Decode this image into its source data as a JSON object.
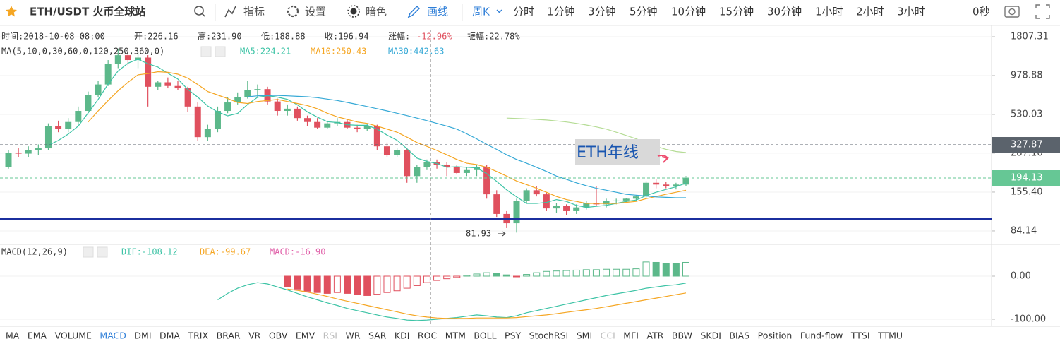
{
  "toolbar": {
    "symbol": "ETH/USDT 火币全球站",
    "buttons": [
      "指标",
      "设置",
      "暗色",
      "画线"
    ],
    "period": "周K",
    "intervals": [
      "分时",
      "1分钟",
      "3分钟",
      "5分钟",
      "10分钟",
      "15分钟",
      "30分钟",
      "1小时",
      "2小时",
      "3小时"
    ],
    "countdown": "0秒"
  },
  "info": {
    "time": "时间:2018-10-08 08:00",
    "open": "开:226.16",
    "high": "高:231.90",
    "low": "低:188.88",
    "close": "收:196.94",
    "change_label": "涨幅:",
    "change": "-12.96%",
    "amplitude": "振幅:22.78%"
  },
  "chart_data": [
    {
      "type": "candlestick",
      "legend_title": "MA(5,10,0,30,60,0,120,250,360,0)",
      "log": true,
      "up_color": "#5cb88a",
      "down_color": "#e0505e",
      "ylim": [
        68.8,
        2020
      ],
      "yticks": [
        1807.31,
        978.88,
        530.03,
        287.16,
        {
          "value": 155.4,
          "label": "155.40"
        },
        84.14
      ],
      "candles": [
        [
          230,
          300,
          225,
          290
        ],
        [
          290,
          310,
          270,
          285
        ],
        [
          285,
          320,
          270,
          300
        ],
        [
          300,
          330,
          280,
          310
        ],
        [
          310,
          460,
          300,
          440
        ],
        [
          440,
          480,
          400,
          420
        ],
        [
          420,
          500,
          400,
          470
        ],
        [
          470,
          600,
          450,
          560
        ],
        [
          560,
          760,
          540,
          720
        ],
        [
          720,
          900,
          700,
          850
        ],
        [
          850,
          1250,
          830,
          1180
        ],
        [
          1180,
          1500,
          1100,
          1350
        ],
        [
          1350,
          1450,
          1150,
          1250
        ],
        [
          1250,
          1400,
          1100,
          1300
        ],
        [
          1300,
          1350,
          600,
          820
        ],
        [
          820,
          900,
          780,
          880
        ],
        [
          880,
          950,
          800,
          830
        ],
        [
          830,
          900,
          780,
          800
        ],
        [
          800,
          820,
          550,
          600
        ],
        [
          600,
          640,
          350,
          370
        ],
        [
          370,
          450,
          350,
          420
        ],
        [
          420,
          600,
          400,
          560
        ],
        [
          560,
          700,
          540,
          640
        ],
        [
          640,
          750,
          620,
          700
        ],
        [
          700,
          900,
          680,
          780
        ],
        [
          780,
          850,
          700,
          790
        ],
        [
          790,
          820,
          620,
          650
        ],
        [
          650,
          680,
          520,
          560
        ],
        [
          560,
          620,
          520,
          580
        ],
        [
          580,
          600,
          480,
          500
        ],
        [
          500,
          520,
          440,
          470
        ],
        [
          470,
          500,
          420,
          430
        ],
        [
          430,
          480,
          420,
          460
        ],
        [
          460,
          500,
          440,
          470
        ],
        [
          470,
          490,
          420,
          430
        ],
        [
          430,
          450,
          400,
          420
        ],
        [
          420,
          460,
          410,
          440
        ],
        [
          440,
          450,
          300,
          320
        ],
        [
          320,
          340,
          270,
          280
        ],
        [
          280,
          310,
          270,
          300
        ],
        [
          300,
          310,
          180,
          200
        ],
        [
          200,
          240,
          180,
          230
        ],
        [
          230,
          260,
          220,
          250
        ],
        [
          250,
          260,
          225,
          240
        ],
        [
          240,
          250,
          200,
          230
        ],
        [
          230,
          240,
          205,
          210
        ],
        [
          210,
          230,
          200,
          220
        ],
        [
          220,
          240,
          200,
          230
        ],
        [
          230,
          240,
          140,
          150
        ],
        [
          150,
          160,
          105,
          110
        ],
        [
          110,
          115,
          88,
          95
        ],
        [
          95,
          140,
          81.93,
          135
        ],
        [
          135,
          165,
          130,
          160
        ],
        [
          160,
          170,
          145,
          150
        ],
        [
          150,
          155,
          115,
          120
        ],
        [
          120,
          130,
          112,
          125
        ],
        [
          125,
          128,
          108,
          115
        ],
        [
          115,
          128,
          110,
          122
        ],
        [
          122,
          135,
          118,
          130
        ],
        [
          130,
          170,
          125,
          128
        ],
        [
          128,
          140,
          122,
          135
        ],
        [
          135,
          140,
          128,
          136
        ],
        [
          136,
          142,
          130,
          140
        ],
        [
          140,
          148,
          135,
          145
        ],
        [
          145,
          185,
          140,
          180
        ],
        [
          180,
          190,
          165,
          175
        ],
        [
          175,
          182,
          165,
          170
        ],
        [
          170,
          180,
          162,
          175
        ],
        [
          175,
          200,
          170,
          194.13
        ]
      ],
      "series": [
        {
          "name": "MA5:224.21",
          "color": "#3cc3a5",
          "values": [
            null,
            null,
            null,
            null,
            325,
            351,
            388,
            440,
            542,
            672,
            856,
            1052,
            1190,
            1266,
            1180,
            1120,
            1016,
            926,
            786,
            696,
            604,
            550,
            518,
            538,
            620,
            694,
            712,
            696,
            672,
            616,
            552,
            508,
            472,
            466,
            450,
            446,
            446,
            420,
            382,
            352,
            308,
            266,
            252,
            244,
            230,
            232,
            230,
            228,
            208,
            184,
            161,
            144,
            130,
            130,
            132,
            138,
            134,
            126,
            122,
            124,
            126,
            130,
            134,
            137,
            147,
            155,
            162,
            169,
            179
          ]
        },
        {
          "name": "MA10:250.43",
          "color": "#f5a623",
          "values": [
            null,
            null,
            null,
            null,
            null,
            null,
            null,
            null,
            470,
            560,
            660,
            770,
            880,
            990,
            1010,
            1040,
            1030,
            1000,
            940,
            850,
            760,
            720,
            680,
            640,
            630,
            650,
            660,
            670,
            650,
            630,
            610,
            580,
            540,
            510,
            490,
            470,
            460,
            440,
            420,
            400,
            370,
            340,
            320,
            300,
            280,
            260,
            245,
            240,
            230,
            215,
            200,
            185,
            175,
            165,
            155,
            145,
            138,
            134,
            130,
            130,
            130,
            130,
            132,
            134,
            140,
            145,
            150,
            155,
            160
          ]
        },
        {
          "name": "MA30:442.63",
          "color": "#36a9d6",
          "values": [
            null,
            null,
            null,
            null,
            null,
            null,
            null,
            null,
            null,
            null,
            null,
            null,
            null,
            null,
            null,
            null,
            null,
            null,
            null,
            null,
            null,
            null,
            null,
            null,
            700,
            710,
            715,
            715,
            710,
            705,
            700,
            690,
            675,
            660,
            640,
            620,
            600,
            580,
            560,
            540,
            520,
            500,
            480,
            460,
            440,
            420,
            390,
            360,
            330,
            305,
            280,
            260,
            245,
            230,
            215,
            200,
            190,
            180,
            172,
            165,
            160,
            155,
            150,
            148,
            146,
            144,
            143,
            142,
            142
          ]
        },
        {
          "color": "#b5dc95",
          "values": [
            null,
            null,
            null,
            null,
            null,
            null,
            null,
            null,
            null,
            null,
            null,
            null,
            null,
            null,
            null,
            null,
            null,
            null,
            null,
            null,
            null,
            null,
            null,
            null,
            null,
            null,
            null,
            null,
            null,
            null,
            null,
            null,
            null,
            null,
            null,
            null,
            null,
            null,
            null,
            null,
            null,
            null,
            null,
            null,
            null,
            null,
            null,
            null,
            null,
            null,
            500,
            497,
            494,
            490,
            485,
            478,
            470,
            460,
            448,
            435,
            420,
            400,
            380,
            360,
            340,
            320,
            305,
            295,
            290
          ]
        }
      ],
      "markers": [
        {
          "value": 327.87,
          "color": "#5b636c"
        },
        {
          "value": 194.13,
          "color": "#66c795"
        }
      ],
      "support_line": {
        "value": 102,
        "color": "#1b2f9e"
      },
      "annotations": [
        {
          "text": "ETH年线"
        },
        {
          "text": "81.93"
        }
      ]
    },
    {
      "type": "macd",
      "legend_title": "MACD(12,26,9)",
      "ylim": [
        -116.4,
        70.5
      ],
      "yticks": [
        {
          "value": 0,
          "label": "0.00"
        },
        {
          "value": -100,
          "label": "-100.00"
        }
      ],
      "series": [
        {
          "name": "DIF:-108.12",
          "color": "#3cc3a5",
          "values": [
            null,
            null,
            null,
            null,
            null,
            null,
            null,
            null,
            null,
            null,
            null,
            null,
            null,
            null,
            null,
            null,
            null,
            null,
            null,
            null,
            null,
            -55,
            -40,
            -28,
            -20,
            -15,
            -18,
            -25,
            -32,
            -40,
            -48,
            -55,
            -62,
            -68,
            -75,
            -80,
            -85,
            -90,
            -95,
            -98,
            -102,
            -103,
            -102,
            -100,
            -98,
            -96,
            -93,
            -90,
            -92,
            -95,
            -96,
            -92,
            -85,
            -80,
            -75,
            -70,
            -65,
            -60,
            -55,
            -50,
            -45,
            -41,
            -37,
            -33,
            -28,
            -25,
            -22,
            -20,
            -16
          ]
        },
        {
          "name": "DEA:-99.67",
          "color": "#f5a623",
          "values": [
            null,
            null,
            null,
            null,
            null,
            null,
            null,
            null,
            null,
            null,
            null,
            null,
            null,
            null,
            null,
            null,
            null,
            null,
            null,
            null,
            null,
            null,
            null,
            null,
            null,
            null,
            null,
            null,
            -30,
            -33,
            -37,
            -42,
            -47,
            -53,
            -58,
            -63,
            -68,
            -73,
            -78,
            -83,
            -88,
            -92,
            -95,
            -97,
            -98,
            -98,
            -98,
            -97,
            -97,
            -97,
            -97,
            -96,
            -94,
            -92,
            -90,
            -87,
            -84,
            -81,
            -78,
            -75,
            -71,
            -67,
            -63,
            -59,
            -55,
            -51,
            -47,
            -43,
            -39
          ]
        }
      ],
      "histogram": {
        "name": "MACD:-16.90",
        "label_color": "#e05fa8",
        "up_color": "#5cb88a",
        "down_color": "#e0505e",
        "values": [
          null,
          null,
          null,
          null,
          null,
          null,
          null,
          null,
          null,
          null,
          null,
          null,
          null,
          null,
          null,
          null,
          null,
          null,
          null,
          null,
          null,
          null,
          null,
          null,
          null,
          null,
          null,
          null,
          -25,
          -30,
          -35,
          -38,
          -40,
          -38,
          -40,
          -42,
          -45,
          -42,
          -38,
          -34,
          -28,
          -22,
          -15,
          -10,
          -6,
          -3,
          2,
          5,
          8,
          6,
          3,
          -1,
          4,
          8,
          11,
          12,
          13,
          14,
          15,
          15,
          16,
          16,
          16,
          17,
          33,
          32,
          30,
          29,
          32
        ]
      }
    }
  ],
  "indicator_tabs": {
    "items": [
      "MA",
      "EMA",
      "VOLUME",
      "MACD",
      "DMI",
      "DMA",
      "TRIX",
      "BRAR",
      "VR",
      "OBV",
      "EMV",
      "RSI",
      "WR",
      "SAR",
      "KDJ",
      "ROC",
      "MTM",
      "BOLL",
      "PSY",
      "StochRSI",
      "SMI",
      "CCI",
      "MFI",
      "ATR",
      "BBW",
      "SKDJ",
      "BIAS",
      "Position",
      "Fund-flow",
      "TTSI",
      "TTMU"
    ],
    "active_index": 3,
    "disabled_indices": [
      11,
      21
    ]
  }
}
